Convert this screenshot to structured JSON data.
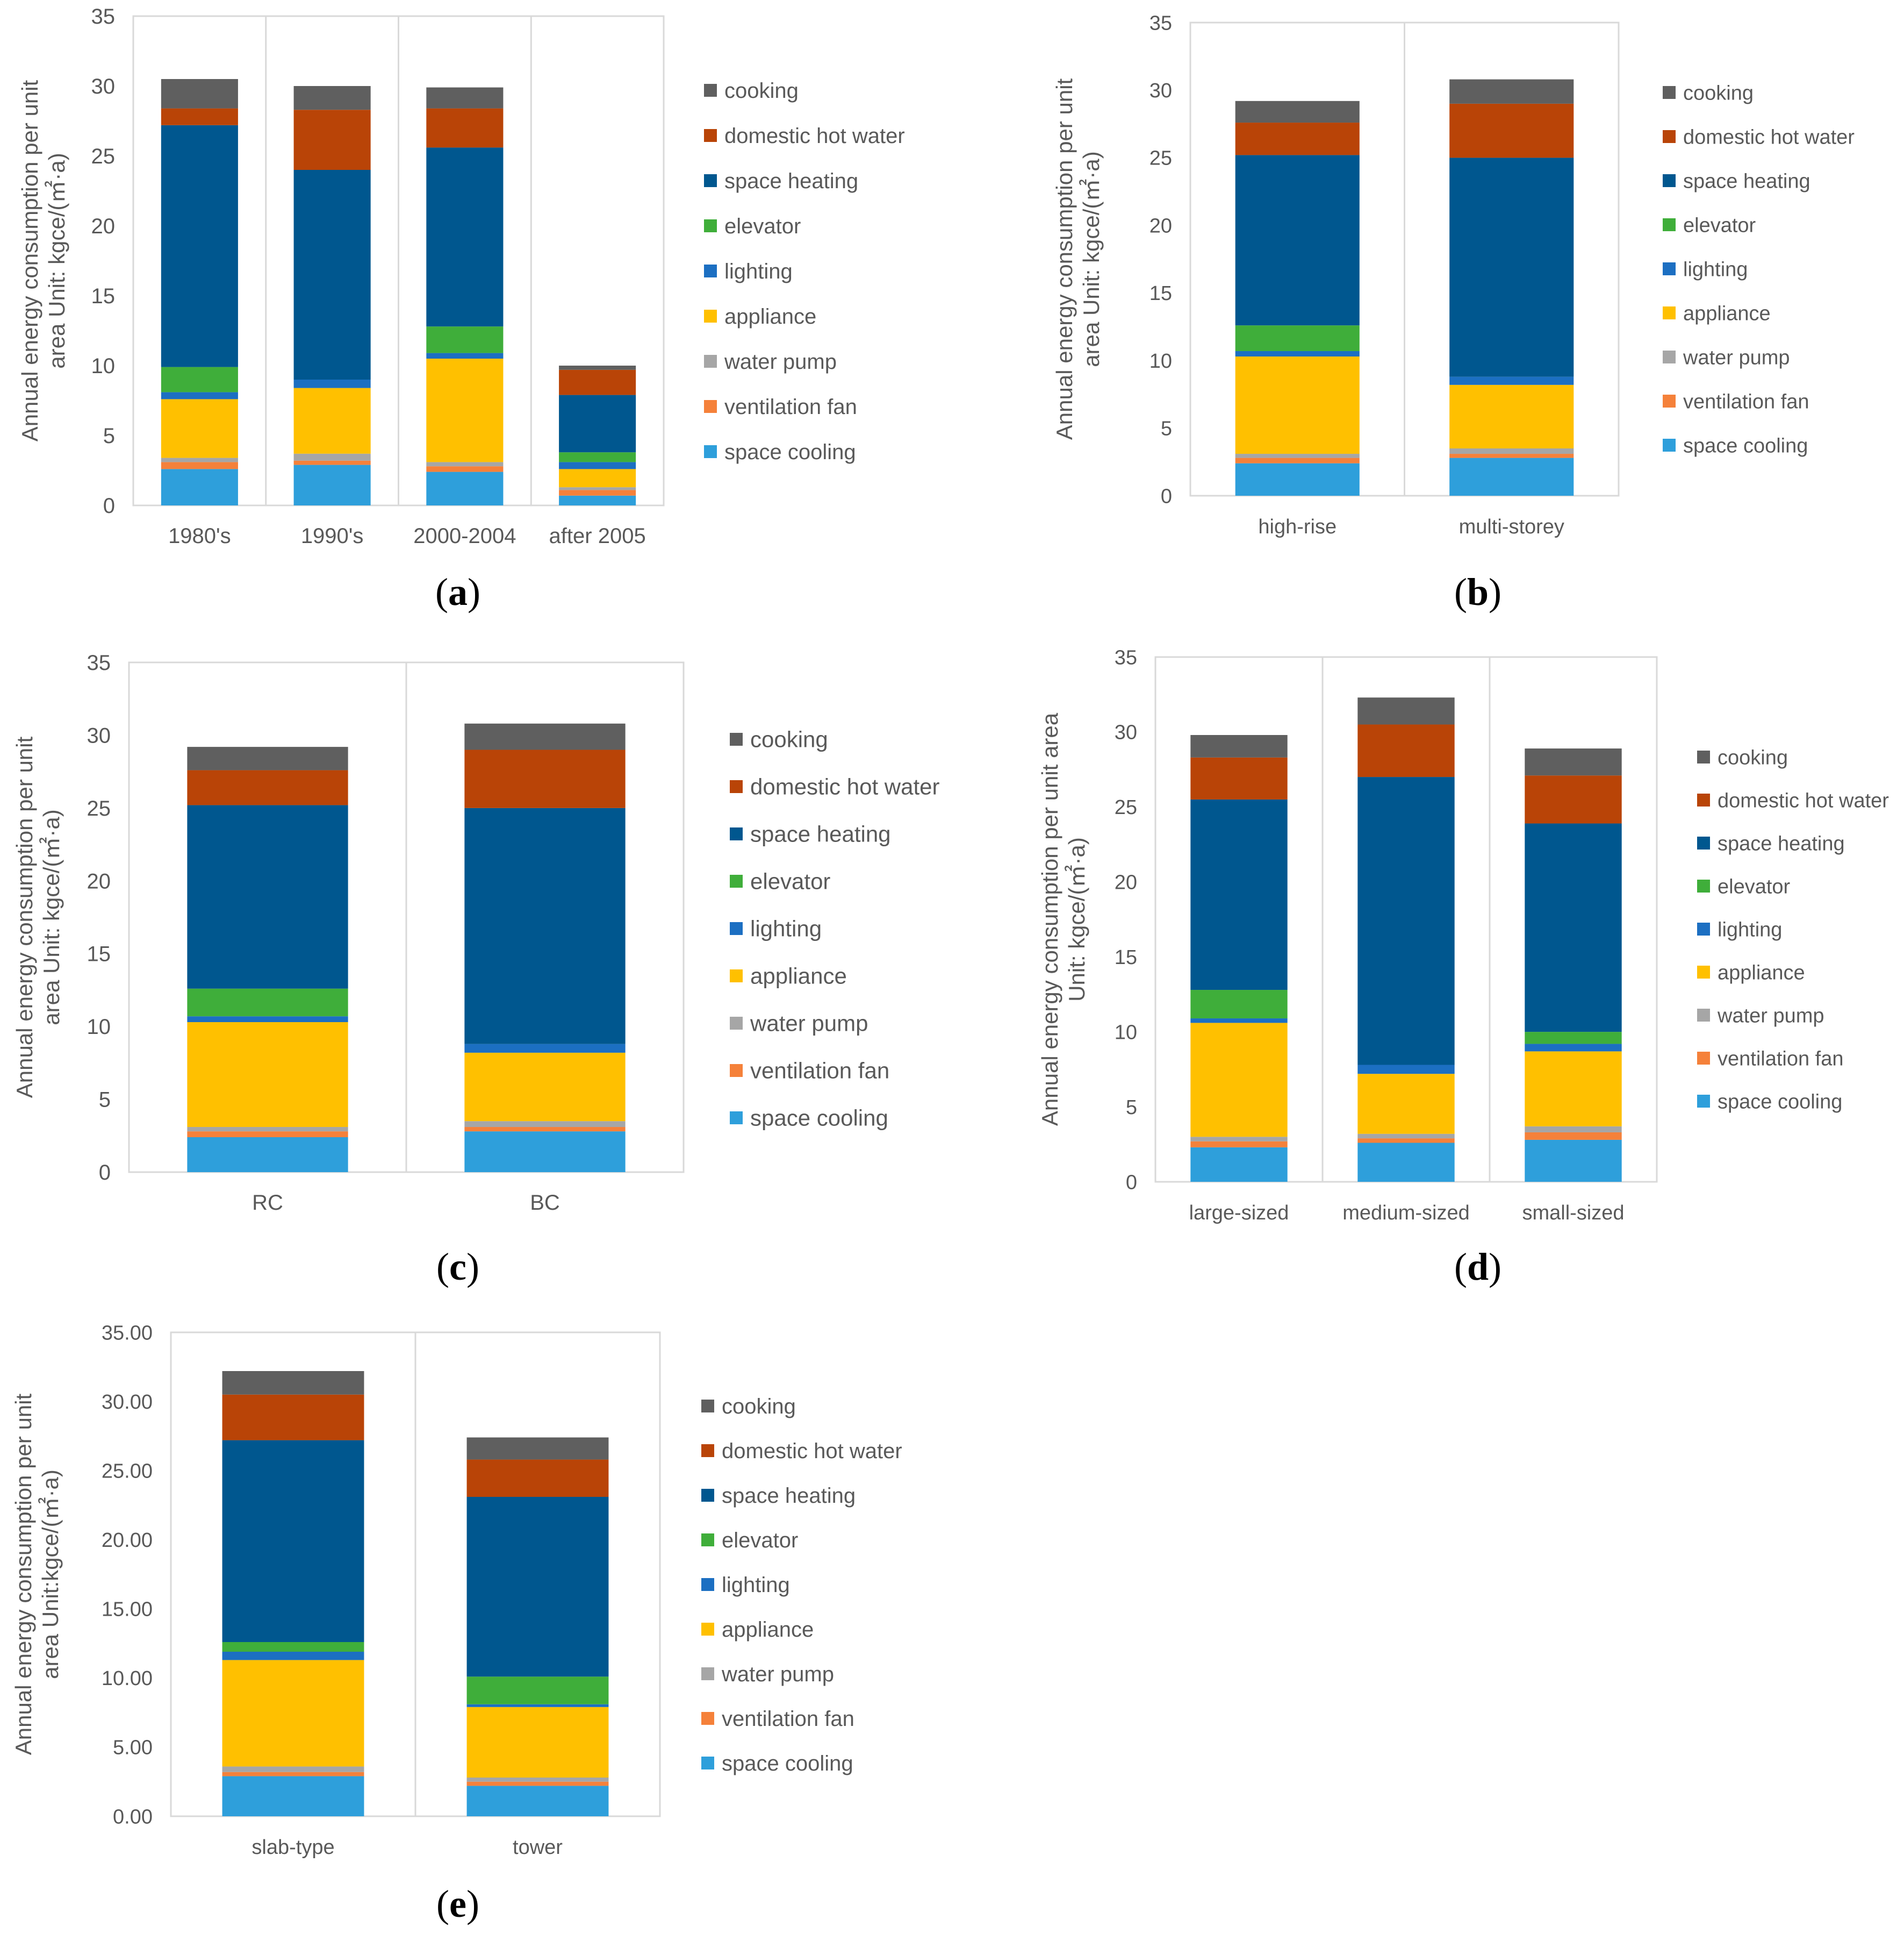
{
  "figure": {
    "colors": {
      "space cooling": "#2E9FDB",
      "ventilation fan": "#F5813A",
      "water pump": "#A6A6A6",
      "appliance": "#FFC000",
      "lighting": "#1C6FC2",
      "elevator": "#3FAE3A",
      "space heating": "#00578F",
      "domestic hot water": "#B94407",
      "cooking": "#5F5F5F"
    },
    "gridline_color": "#D9D9D9"
  },
  "chart_data": [
    {
      "panel": "(a)",
      "panel_letter": "a",
      "type": "bar",
      "stacked": true,
      "categories": [
        "1980's",
        "1990's",
        "2000-2004",
        "after 2005"
      ],
      "ylabel_lines": [
        "Annual energy consumption per unit",
        "area Unit: kgce/(㎡·a)"
      ],
      "ylim": [
        0,
        35
      ],
      "yticks": [
        "0",
        "5",
        "10",
        "15",
        "20",
        "25",
        "30",
        "35"
      ],
      "legend_order": [
        "cooking",
        "domestic hot water",
        "space heating",
        "elevator",
        "lighting",
        "appliance",
        "water pump",
        "ventilation fan",
        "space cooling"
      ],
      "series": [
        {
          "name": "space cooling",
          "values": [
            2.6,
            2.9,
            2.4,
            0.7
          ]
        },
        {
          "name": "ventilation fan",
          "values": [
            0.5,
            0.3,
            0.4,
            0.4
          ]
        },
        {
          "name": "water pump",
          "values": [
            0.3,
            0.5,
            0.3,
            0.2
          ]
        },
        {
          "name": "appliance",
          "values": [
            4.2,
            4.7,
            7.4,
            1.3
          ]
        },
        {
          "name": "lighting",
          "values": [
            0.5,
            0.6,
            0.4,
            0.5
          ]
        },
        {
          "name": "elevator",
          "values": [
            1.8,
            0.0,
            1.9,
            0.7
          ]
        },
        {
          "name": "space heating",
          "values": [
            17.3,
            15.0,
            12.8,
            4.1
          ]
        },
        {
          "name": "domestic hot water",
          "values": [
            1.2,
            4.3,
            2.8,
            1.8
          ]
        },
        {
          "name": "cooking",
          "values": [
            2.1,
            1.7,
            1.5,
            0.3
          ]
        }
      ]
    },
    {
      "panel": "(b)",
      "panel_letter": "b",
      "type": "bar",
      "stacked": true,
      "categories": [
        "high-rise",
        "multi-storey"
      ],
      "ylabel_lines": [
        "Annual energy consumption per unit",
        "area Unit: kgce/(㎡·a)"
      ],
      "ylim": [
        0,
        35
      ],
      "yticks": [
        "0",
        "5",
        "10",
        "15",
        "20",
        "25",
        "30",
        "35"
      ],
      "legend_order": [
        "cooking",
        "domestic hot water",
        "space heating",
        "elevator",
        "lighting",
        "appliance",
        "water pump",
        "ventilation fan",
        "space cooling"
      ],
      "series": [
        {
          "name": "space cooling",
          "values": [
            2.4,
            2.8
          ]
        },
        {
          "name": "ventilation fan",
          "values": [
            0.4,
            0.3
          ]
        },
        {
          "name": "water pump",
          "values": [
            0.3,
            0.4
          ]
        },
        {
          "name": "appliance",
          "values": [
            7.2,
            4.7
          ]
        },
        {
          "name": "lighting",
          "values": [
            0.4,
            0.6
          ]
        },
        {
          "name": "elevator",
          "values": [
            1.9,
            0.0
          ]
        },
        {
          "name": "space heating",
          "values": [
            12.6,
            16.2
          ]
        },
        {
          "name": "domestic hot water",
          "values": [
            2.4,
            4.0
          ]
        },
        {
          "name": "cooking",
          "values": [
            1.6,
            1.8
          ]
        }
      ]
    },
    {
      "panel": "(c)",
      "panel_letter": "c",
      "type": "bar",
      "stacked": true,
      "categories": [
        "RC",
        "BC"
      ],
      "ylabel_lines": [
        "Annual energy consumption per unit",
        "area Unit: kgce/(㎡·a)"
      ],
      "ylim": [
        0,
        35
      ],
      "yticks": [
        "0",
        "5",
        "10",
        "15",
        "20",
        "25",
        "30",
        "35"
      ],
      "legend_order": [
        "cooking",
        "domestic hot water",
        "space heating",
        "elevator",
        "lighting",
        "appliance",
        "water pump",
        "ventilation fan",
        "space cooling"
      ],
      "series": [
        {
          "name": "space cooling",
          "values": [
            2.4,
            2.8
          ]
        },
        {
          "name": "ventilation fan",
          "values": [
            0.4,
            0.3
          ]
        },
        {
          "name": "water pump",
          "values": [
            0.3,
            0.4
          ]
        },
        {
          "name": "appliance",
          "values": [
            7.2,
            4.7
          ]
        },
        {
          "name": "lighting",
          "values": [
            0.4,
            0.6
          ]
        },
        {
          "name": "elevator",
          "values": [
            1.9,
            0.0
          ]
        },
        {
          "name": "space heating",
          "values": [
            12.6,
            16.2
          ]
        },
        {
          "name": "domestic hot water",
          "values": [
            2.4,
            4.0
          ]
        },
        {
          "name": "cooking",
          "values": [
            1.6,
            1.8
          ]
        }
      ]
    },
    {
      "panel": "(d)",
      "panel_letter": "d",
      "type": "bar",
      "stacked": true,
      "categories": [
        "large-sized",
        "medium-sized",
        "small-sized"
      ],
      "ylabel_lines": [
        "Annual energy consumption per unit area",
        "Unit: kgce/(㎡·a)"
      ],
      "ylim": [
        0,
        35
      ],
      "yticks": [
        "0",
        "5",
        "10",
        "15",
        "20",
        "25",
        "30",
        "35"
      ],
      "legend_order": [
        "cooking",
        "domestic hot water",
        "space heating",
        "elevator",
        "lighting",
        "appliance",
        "water pump",
        "ventilation fan",
        "space cooling"
      ],
      "series": [
        {
          "name": "space cooling",
          "values": [
            2.3,
            2.6,
            2.8
          ]
        },
        {
          "name": "ventilation fan",
          "values": [
            0.4,
            0.3,
            0.5
          ]
        },
        {
          "name": "water pump",
          "values": [
            0.3,
            0.3,
            0.4
          ]
        },
        {
          "name": "appliance",
          "values": [
            7.6,
            4.0,
            5.0
          ]
        },
        {
          "name": "lighting",
          "values": [
            0.3,
            0.6,
            0.5
          ]
        },
        {
          "name": "elevator",
          "values": [
            1.9,
            0.0,
            0.8
          ]
        },
        {
          "name": "space heating",
          "values": [
            12.7,
            19.2,
            13.9
          ]
        },
        {
          "name": "domestic hot water",
          "values": [
            2.8,
            3.5,
            3.2
          ]
        },
        {
          "name": "cooking",
          "values": [
            1.5,
            1.8,
            1.8
          ]
        }
      ]
    },
    {
      "panel": "(e)",
      "panel_letter": "e",
      "type": "bar",
      "stacked": true,
      "categories": [
        "slab-type",
        "tower"
      ],
      "ylabel_lines": [
        "Annual energy consumption per unit",
        "area Unit:kgce/(㎡·a)"
      ],
      "ylim": [
        0,
        35
      ],
      "yticks": [
        "0.00",
        "5.00",
        "10.00",
        "15.00",
        "20.00",
        "25.00",
        "30.00",
        "35.00"
      ],
      "legend_order": [
        "cooking",
        "domestic hot water",
        "space heating",
        "elevator",
        "lighting",
        "appliance",
        "water pump",
        "ventilation fan",
        "space cooling"
      ],
      "series": [
        {
          "name": "space cooling",
          "values": [
            2.9,
            2.2
          ]
        },
        {
          "name": "ventilation fan",
          "values": [
            0.3,
            0.3
          ]
        },
        {
          "name": "water pump",
          "values": [
            0.4,
            0.3
          ]
        },
        {
          "name": "appliance",
          "values": [
            7.7,
            5.1
          ]
        },
        {
          "name": "lighting",
          "values": [
            0.6,
            0.2
          ]
        },
        {
          "name": "elevator",
          "values": [
            0.7,
            2.0
          ]
        },
        {
          "name": "space heating",
          "values": [
            14.6,
            13.0
          ]
        },
        {
          "name": "domestic hot water",
          "values": [
            3.3,
            2.7
          ]
        },
        {
          "name": "cooking",
          "values": [
            1.7,
            1.6
          ]
        }
      ]
    }
  ]
}
